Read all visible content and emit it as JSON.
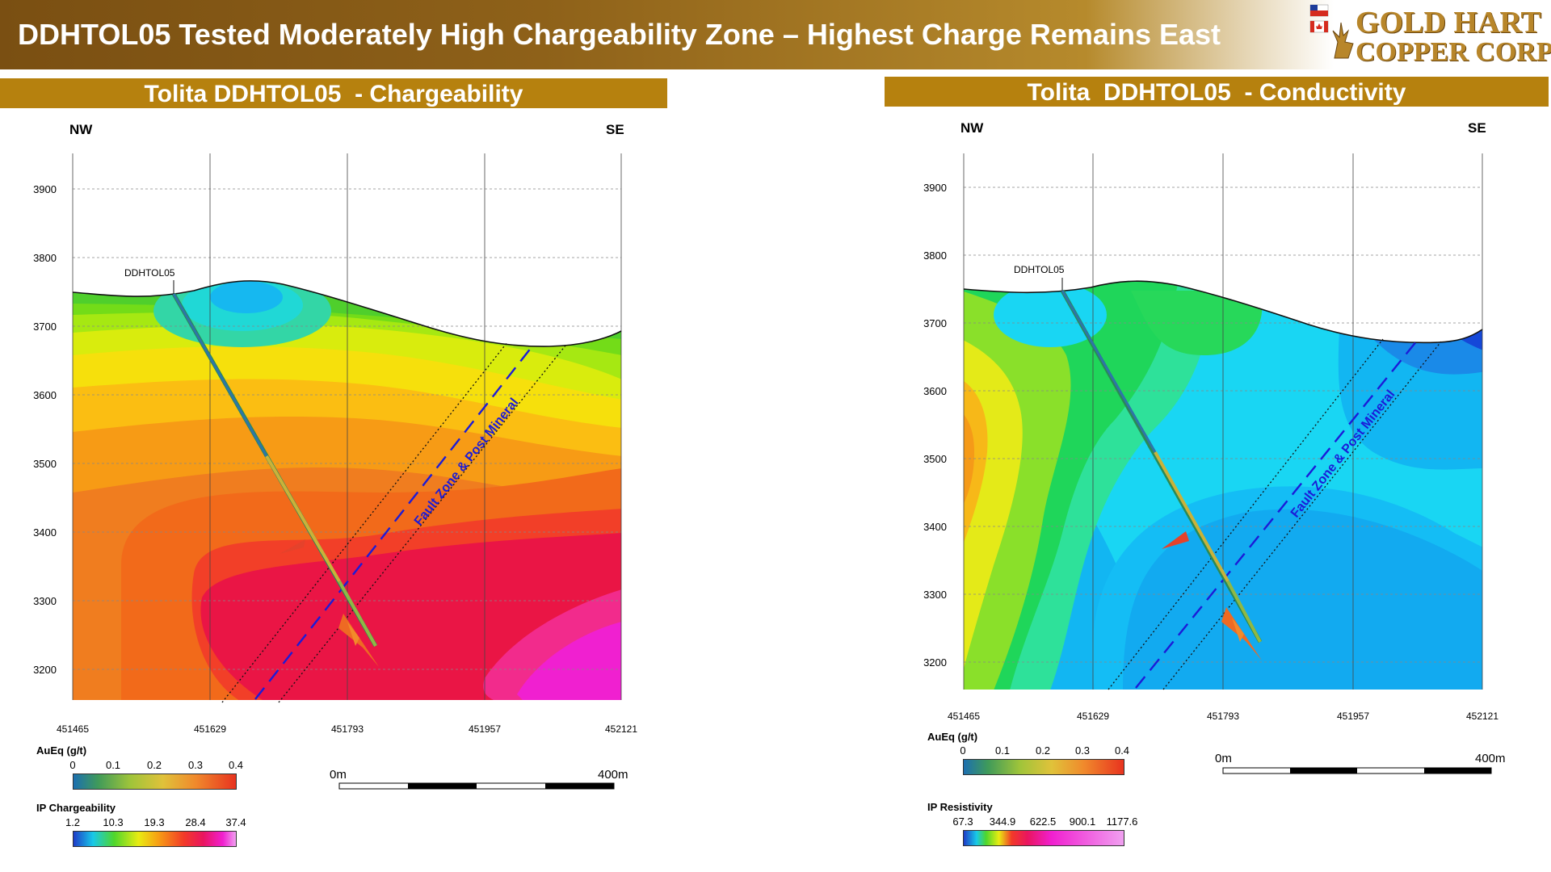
{
  "banner": {
    "title": "DDHTOL05 Tested Moderately High Chargeability Zone – Highest Charge Remains East",
    "logo": {
      "line1": "GOLD HART",
      "line2": "COPPER CORP"
    }
  },
  "colors": {
    "header_gold": "#b6810e",
    "fault_blue": "#1b1bd8"
  },
  "panels": [
    {
      "header": "Tolita DDHTOL05  - Chargeability",
      "compass_left": "NW",
      "compass_right": "SE",
      "hole_label": "DDHTOL05",
      "fault_label": "Fault Zone & Post Mineral",
      "y_ticks": [
        "3900",
        "3800",
        "3700",
        "3600",
        "3500",
        "3400",
        "3300",
        "3200"
      ],
      "x_ticks": [
        "451465",
        "451629",
        "451793",
        "451957",
        "452121"
      ],
      "scale_start": "0m",
      "scale_end": "400m",
      "legend1": {
        "title": "AuEq (g/t)",
        "ticks": [
          "0",
          "0.1",
          "0.2",
          "0.3",
          "0.4"
        ]
      },
      "legend2": {
        "title": "IP Chargeability",
        "ticks": [
          "1.2",
          "10.3",
          "19.3",
          "28.4",
          "37.4"
        ]
      }
    },
    {
      "header": "Tolita  DDHTOL05  - Conductivity",
      "compass_left": "NW",
      "compass_right": "SE",
      "hole_label": "DDHTOL05",
      "fault_label": "Fault Zone & Post Mineral",
      "y_ticks": [
        "3900",
        "3800",
        "3700",
        "3600",
        "3500",
        "3400",
        "3300",
        "3200"
      ],
      "x_ticks": [
        "451465",
        "451629",
        "451793",
        "451957",
        "452121"
      ],
      "scale_start": "0m",
      "scale_end": "400m",
      "legend1": {
        "title": "AuEq (g/t)",
        "ticks": [
          "0",
          "0.1",
          "0.2",
          "0.3",
          "0.4"
        ]
      },
      "legend2": {
        "title": "IP Resistivity",
        "ticks": [
          "67.3",
          "344.9",
          "622.5",
          "900.1",
          "1177.6"
        ]
      }
    }
  ]
}
